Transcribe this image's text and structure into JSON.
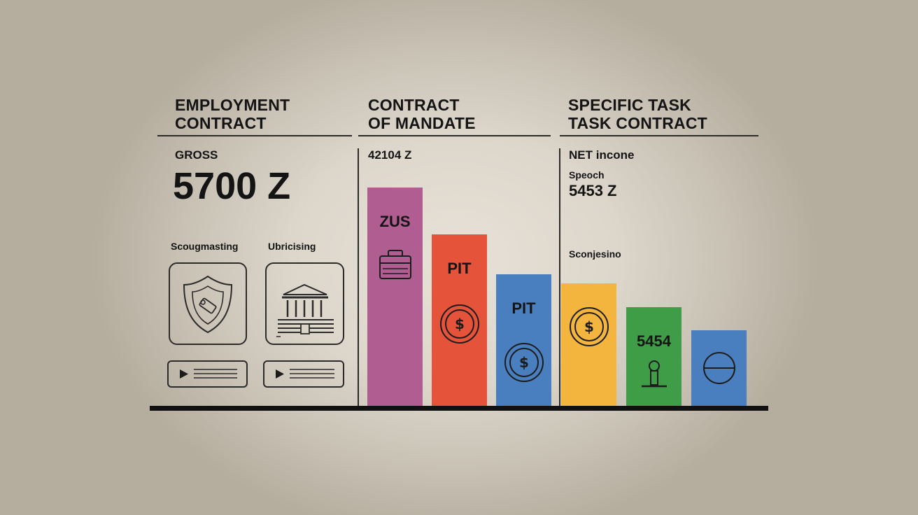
{
  "sections": [
    {
      "title_line1": "EMPLOYMENT",
      "title_line2": "CONTRACT",
      "label": "GROSS",
      "value": "5700 Z",
      "card_labels": [
        "Scougmasting",
        "Ubricising"
      ]
    },
    {
      "title_line1": "CONTRACT",
      "title_line2": "OF MANDATE",
      "value": "42104 Z"
    },
    {
      "title_line1": "SPECIFIC TASK",
      "title_line2": "TASK CONTRACT",
      "label": "NET incone",
      "sublabel": "Speoch",
      "value": "5453 Z",
      "note": "Sconjesino"
    }
  ],
  "bars": [
    {
      "label": "ZUS",
      "color": "#b05d92",
      "level": 0.93,
      "icon": "briefcase-icon"
    },
    {
      "label": "PIT",
      "color": "#e5533b",
      "level": 0.73,
      "icon": "coin-icon"
    },
    {
      "label": "PIT",
      "color": "#4a7fbf",
      "level": 0.56,
      "icon": "coin-icon"
    },
    {
      "label": "",
      "color": "#f4b53e",
      "level": 0.52,
      "icon": "coin-icon"
    },
    {
      "label": "5454",
      "color": "#3f9d48",
      "level": 0.42,
      "icon": "stamp-icon"
    },
    {
      "label": "",
      "color": "#4a7fbf",
      "level": 0.32,
      "icon": "circle-minus-icon"
    }
  ],
  "colors": {
    "background": "#d9d3c8",
    "ink": "#141414"
  }
}
